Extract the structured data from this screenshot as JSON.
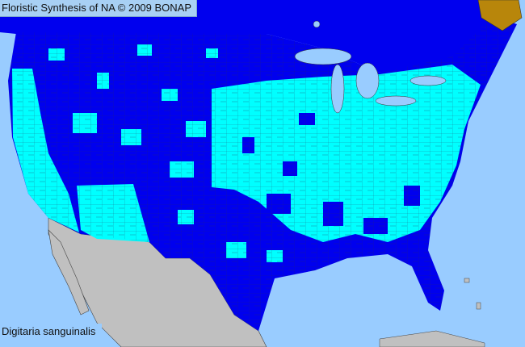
{
  "header": {
    "title": "Floristic Synthesis of NA © 2009 BONAP"
  },
  "map": {
    "species_label": "Digitaria sanguinalis",
    "colors": {
      "ocean": "#99ccff",
      "present_not_rare": "#00ffff",
      "absent_native_state": "#0000ee",
      "mexico": "#c0c0c0",
      "not_in_scope": "#b8860b"
    }
  }
}
